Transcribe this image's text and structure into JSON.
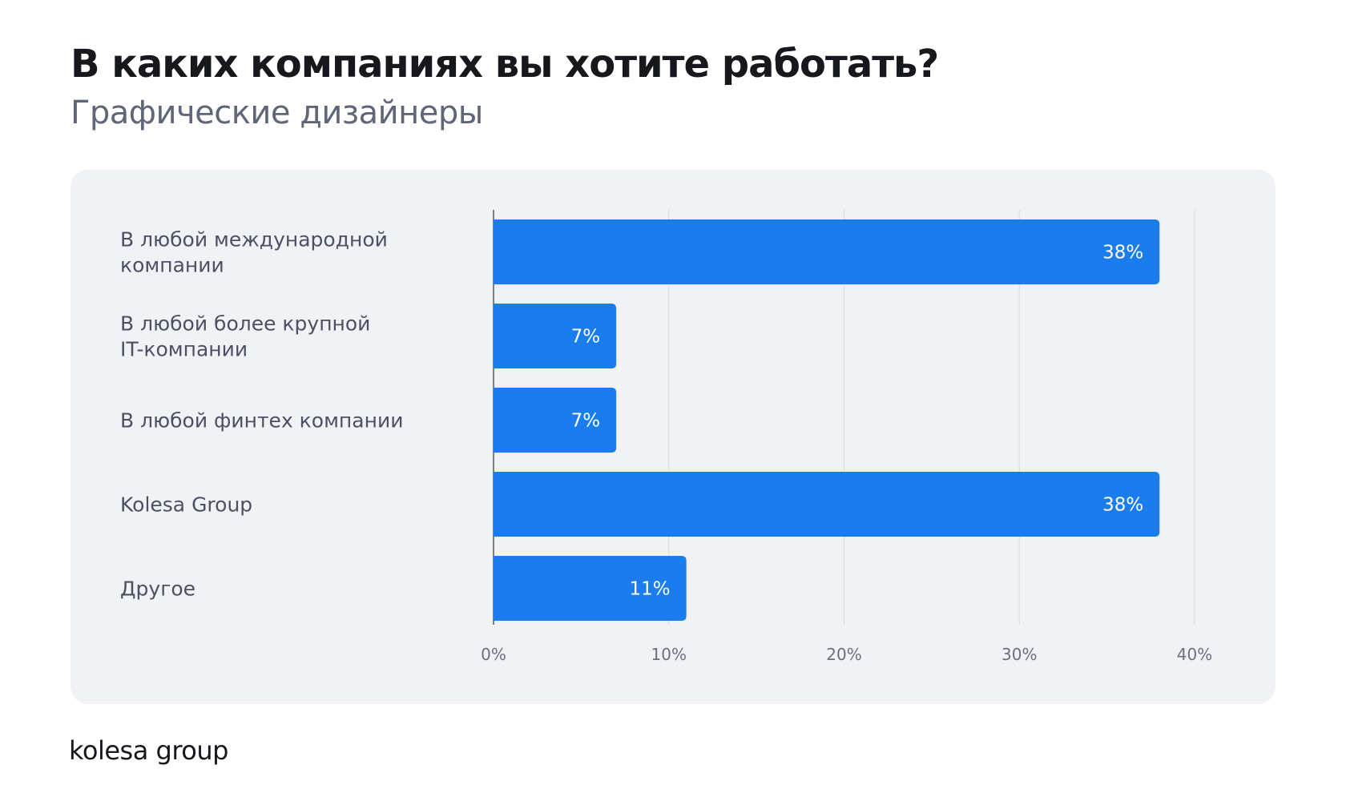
{
  "header": {
    "title": "В каких компаниях вы хотите работать?",
    "subtitle": "Графические дизайнеры"
  },
  "footer": {
    "logo": "kolesa group"
  },
  "colors": {
    "bar": "#1b7ced",
    "grid": "#d6d9df",
    "axis": "#555b66"
  },
  "chart_data": {
    "type": "bar",
    "orientation": "horizontal",
    "title": "В каких компаниях вы хотите работать?",
    "subtitle": "Графические дизайнеры",
    "categories": [
      [
        "В любой международной",
        "компании"
      ],
      [
        "В любой более крупной",
        "IT-компании"
      ],
      [
        "В любой финтех компании"
      ],
      [
        "Kolesa Group"
      ],
      [
        "Другое"
      ]
    ],
    "values": [
      38,
      7,
      7,
      38,
      11
    ],
    "value_labels": [
      "38%",
      "7%",
      "7%",
      "38%",
      "11%"
    ],
    "xlim": [
      0,
      40
    ],
    "xticks": [
      0,
      10,
      20,
      30,
      40
    ],
    "xtick_labels": [
      "0%",
      "10%",
      "20%",
      "30%",
      "40%"
    ],
    "grid": true
  }
}
